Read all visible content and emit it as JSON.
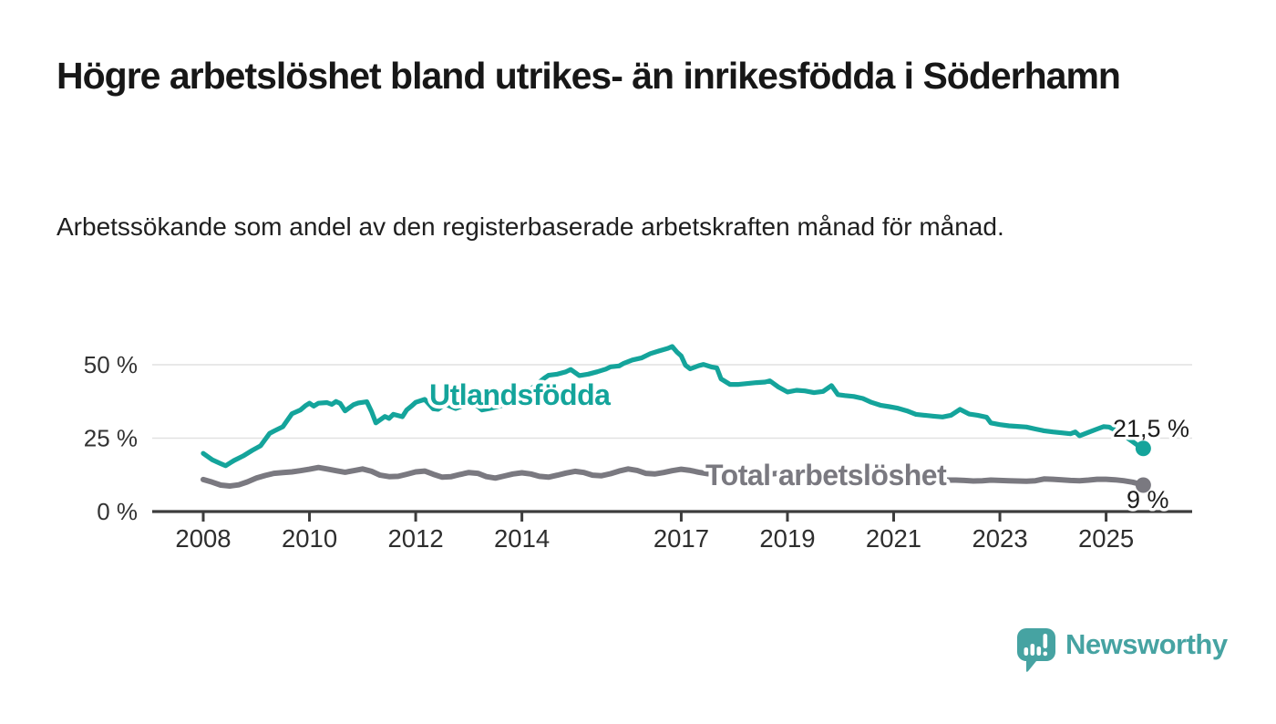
{
  "header": {
    "title": "Högre arbetslöshet bland utrikes- än inrikesfödda i Söderhamn",
    "subtitle": "Arbetssökande som andel av den registerbaserade arbetskraften månad för månad."
  },
  "chart_data": {
    "type": "line",
    "unit": "%",
    "x_axis": {
      "tick_years": [
        2008,
        2010,
        2012,
        2014,
        2017,
        2019,
        2021,
        2023,
        2025
      ],
      "range_years": [
        2008,
        2026.5
      ]
    },
    "y_axis": {
      "ticks": [
        {
          "value": 0,
          "label": "0 %"
        },
        {
          "value": 25,
          "label": "25 %"
        },
        {
          "value": 50,
          "label": "50 %"
        }
      ],
      "range": [
        0,
        57
      ],
      "grid": true
    },
    "series": [
      {
        "name": "Utlandsfödda",
        "color": "#14a49b",
        "end_dot": {
          "x": 2025.7,
          "value": 21.5,
          "label": "21,5 %"
        },
        "points": [
          [
            2008,
            19.8
          ],
          [
            2008.17,
            17.6
          ],
          [
            2008.33,
            16.3
          ],
          [
            2008.42,
            15.6
          ],
          [
            2008.58,
            17.4
          ],
          [
            2008.75,
            18.9
          ],
          [
            2008.92,
            20.8
          ],
          [
            2009.08,
            22.4
          ],
          [
            2009.25,
            26.6
          ],
          [
            2009.33,
            27.4
          ],
          [
            2009.5,
            28.9
          ],
          [
            2009.67,
            33.3
          ],
          [
            2009.83,
            34.6
          ],
          [
            2009.92,
            36
          ],
          [
            2010,
            36.9
          ],
          [
            2010.08,
            35.9
          ],
          [
            2010.17,
            36.9
          ],
          [
            2010.33,
            37.1
          ],
          [
            2010.42,
            36.5
          ],
          [
            2010.5,
            37.5
          ],
          [
            2010.58,
            36.8
          ],
          [
            2010.67,
            34.3
          ],
          [
            2010.83,
            36.4
          ],
          [
            2010.92,
            37
          ],
          [
            2011.08,
            37.4
          ],
          [
            2011.17,
            34
          ],
          [
            2011.25,
            30.2
          ],
          [
            2011.42,
            32.4
          ],
          [
            2011.5,
            31.7
          ],
          [
            2011.58,
            33.1
          ],
          [
            2011.75,
            32.3
          ],
          [
            2011.83,
            34.6
          ],
          [
            2011.92,
            35.9
          ],
          [
            2012,
            37.2
          ],
          [
            2012.17,
            38.2
          ],
          [
            2012.33,
            35
          ],
          [
            2012.42,
            34.8
          ],
          [
            2012.5,
            35.9
          ],
          [
            2012.58,
            36.4
          ],
          [
            2012.75,
            35.1
          ],
          [
            2012.92,
            36.2
          ],
          [
            2013,
            36.5
          ],
          [
            2013.17,
            35.8
          ],
          [
            2013.25,
            34.6
          ],
          [
            2013.42,
            35.2
          ],
          [
            2013.58,
            35.9
          ],
          [
            2013.75,
            36.8
          ],
          [
            2013.92,
            38.4
          ],
          [
            2014.08,
            40.4
          ],
          [
            2014.25,
            42.9
          ],
          [
            2014.42,
            45.4
          ],
          [
            2014.5,
            46.4
          ],
          [
            2014.67,
            46.8
          ],
          [
            2014.83,
            47.6
          ],
          [
            2014.92,
            48.4
          ],
          [
            2015.08,
            46.3
          ],
          [
            2015.25,
            46.8
          ],
          [
            2015.42,
            47.6
          ],
          [
            2015.58,
            48.5
          ],
          [
            2015.67,
            49.3
          ],
          [
            2015.83,
            49.6
          ],
          [
            2015.92,
            50.5
          ],
          [
            2016.08,
            51.6
          ],
          [
            2016.25,
            52.3
          ],
          [
            2016.42,
            53.8
          ],
          [
            2016.58,
            54.7
          ],
          [
            2016.75,
            55.6
          ],
          [
            2016.83,
            56.2
          ],
          [
            2016.92,
            54.3
          ],
          [
            2017,
            53
          ],
          [
            2017.08,
            49.8
          ],
          [
            2017.17,
            48.6
          ],
          [
            2017.33,
            49.7
          ],
          [
            2017.42,
            50.1
          ],
          [
            2017.58,
            49.2
          ],
          [
            2017.67,
            48.9
          ],
          [
            2017.75,
            45.2
          ],
          [
            2017.92,
            43.3
          ],
          [
            2018.08,
            43.3
          ],
          [
            2018.25,
            43.6
          ],
          [
            2018.42,
            43.9
          ],
          [
            2018.58,
            44.1
          ],
          [
            2018.67,
            44.5
          ],
          [
            2018.83,
            42.4
          ],
          [
            2019,
            40.7
          ],
          [
            2019.17,
            41.3
          ],
          [
            2019.33,
            41.1
          ],
          [
            2019.5,
            40.5
          ],
          [
            2019.67,
            40.9
          ],
          [
            2019.83,
            42.9
          ],
          [
            2019.95,
            39.8
          ],
          [
            2020.08,
            39.5
          ],
          [
            2020.25,
            39.2
          ],
          [
            2020.42,
            38.5
          ],
          [
            2020.58,
            37.2
          ],
          [
            2020.75,
            36.2
          ],
          [
            2020.92,
            35.7
          ],
          [
            2021.08,
            35.2
          ],
          [
            2021.25,
            34.3
          ],
          [
            2021.42,
            33.1
          ],
          [
            2021.58,
            32.8
          ],
          [
            2021.75,
            32.5
          ],
          [
            2021.92,
            32.2
          ],
          [
            2022.08,
            32.8
          ],
          [
            2022.25,
            34.8
          ],
          [
            2022.42,
            33.2
          ],
          [
            2022.58,
            32.8
          ],
          [
            2022.75,
            32.1
          ],
          [
            2022.83,
            30.2
          ],
          [
            2023,
            29.6
          ],
          [
            2023.17,
            29.2
          ],
          [
            2023.33,
            29
          ],
          [
            2023.5,
            28.8
          ],
          [
            2023.67,
            28.1
          ],
          [
            2023.83,
            27.5
          ],
          [
            2024,
            27.1
          ],
          [
            2024.17,
            26.8
          ],
          [
            2024.33,
            26.5
          ],
          [
            2024.42,
            27.1
          ],
          [
            2024.5,
            25.8
          ],
          [
            2024.67,
            27
          ],
          [
            2024.83,
            28.1
          ],
          [
            2024.95,
            28.9
          ],
          [
            2025.05,
            28.8
          ],
          [
            2025.2,
            27.6
          ],
          [
            2025.35,
            25.7
          ],
          [
            2025.5,
            23.8
          ],
          [
            2025.6,
            22.5
          ],
          [
            2025.7,
            21.5
          ]
        ]
      },
      {
        "name": "Total arbetslöshet",
        "color": "#7a7980",
        "end_dot": {
          "x": 2025.7,
          "value": 9,
          "label": "9 %"
        },
        "points": [
          [
            2008,
            10.9
          ],
          [
            2008.17,
            10
          ],
          [
            2008.33,
            9
          ],
          [
            2008.5,
            8.7
          ],
          [
            2008.67,
            9.1
          ],
          [
            2008.83,
            10.1
          ],
          [
            2009,
            11.4
          ],
          [
            2009.17,
            12.3
          ],
          [
            2009.33,
            13
          ],
          [
            2009.5,
            13.3
          ],
          [
            2009.67,
            13.5
          ],
          [
            2009.83,
            13.9
          ],
          [
            2010,
            14.4
          ],
          [
            2010.17,
            15
          ],
          [
            2010.33,
            14.5
          ],
          [
            2010.5,
            13.9
          ],
          [
            2010.67,
            13.4
          ],
          [
            2010.83,
            13.9
          ],
          [
            2011,
            14.5
          ],
          [
            2011.17,
            13.7
          ],
          [
            2011.33,
            12.4
          ],
          [
            2011.5,
            11.9
          ],
          [
            2011.67,
            12
          ],
          [
            2011.83,
            12.7
          ],
          [
            2012,
            13.5
          ],
          [
            2012.17,
            13.8
          ],
          [
            2012.33,
            12.7
          ],
          [
            2012.5,
            11.7
          ],
          [
            2012.67,
            11.9
          ],
          [
            2012.83,
            12.6
          ],
          [
            2013,
            13.3
          ],
          [
            2013.17,
            13
          ],
          [
            2013.33,
            11.9
          ],
          [
            2013.5,
            11.4
          ],
          [
            2013.67,
            12.1
          ],
          [
            2013.83,
            12.8
          ],
          [
            2014,
            13.2
          ],
          [
            2014.17,
            12.8
          ],
          [
            2014.33,
            12
          ],
          [
            2014.5,
            11.7
          ],
          [
            2014.67,
            12.4
          ],
          [
            2014.83,
            13.1
          ],
          [
            2015,
            13.7
          ],
          [
            2015.17,
            13.3
          ],
          [
            2015.33,
            12.4
          ],
          [
            2015.5,
            12.2
          ],
          [
            2015.67,
            12.9
          ],
          [
            2015.83,
            13.8
          ],
          [
            2016,
            14.5
          ],
          [
            2016.17,
            14
          ],
          [
            2016.33,
            13
          ],
          [
            2016.5,
            12.8
          ],
          [
            2016.67,
            13.3
          ],
          [
            2016.83,
            13.9
          ],
          [
            2017,
            14.4
          ],
          [
            2017.17,
            14
          ],
          [
            2017.33,
            13.4
          ],
          [
            2017.5,
            12.9
          ],
          [
            2017.67,
            13.2
          ],
          [
            2017.83,
            13.5
          ],
          [
            2018,
            13.6
          ],
          [
            2018.17,
            13.2
          ],
          [
            2018.33,
            12.8
          ],
          [
            2018.5,
            12.5
          ],
          [
            2018.67,
            12.8
          ],
          [
            2018.83,
            13
          ],
          [
            2019,
            13.1
          ],
          [
            2019.17,
            12.8
          ],
          [
            2019.33,
            12.4
          ],
          [
            2019.5,
            12.2
          ],
          [
            2019.67,
            12.4
          ],
          [
            2019.83,
            12.8
          ],
          [
            2020,
            13
          ],
          [
            2020.17,
            13.2
          ],
          [
            2020.33,
            13.3
          ],
          [
            2020.5,
            13
          ],
          [
            2020.67,
            12.6
          ],
          [
            2020.83,
            12.2
          ],
          [
            2021,
            11.9
          ],
          [
            2021.17,
            11.6
          ],
          [
            2021.33,
            11.3
          ],
          [
            2021.5,
            11.1
          ],
          [
            2021.67,
            11
          ],
          [
            2021.83,
            10.8
          ],
          [
            2022,
            10.7
          ],
          [
            2022.17,
            10.7
          ],
          [
            2022.33,
            10.6
          ],
          [
            2022.5,
            10.4
          ],
          [
            2022.67,
            10.5
          ],
          [
            2022.83,
            10.7
          ],
          [
            2023,
            10.6
          ],
          [
            2023.17,
            10.5
          ],
          [
            2023.33,
            10.4
          ],
          [
            2023.5,
            10.3
          ],
          [
            2023.67,
            10.5
          ],
          [
            2023.83,
            11.1
          ],
          [
            2024,
            11
          ],
          [
            2024.17,
            10.8
          ],
          [
            2024.33,
            10.6
          ],
          [
            2024.5,
            10.5
          ],
          [
            2024.67,
            10.7
          ],
          [
            2024.83,
            11
          ],
          [
            2025,
            11
          ],
          [
            2025.17,
            10.8
          ],
          [
            2025.33,
            10.5
          ],
          [
            2025.5,
            10
          ],
          [
            2025.6,
            9.5
          ],
          [
            2025.7,
            9
          ]
        ]
      }
    ],
    "colors": {
      "grid": "#e1e1e1",
      "axis": "#3d3d3d",
      "tick_label": "#2e2e2e",
      "value_label": "#1d1d1d"
    }
  },
  "branding": {
    "logo_text": "Newsworthy",
    "logo_color": "#46a3a2",
    "logo_icon": "speech-bubble-bar-chart"
  }
}
